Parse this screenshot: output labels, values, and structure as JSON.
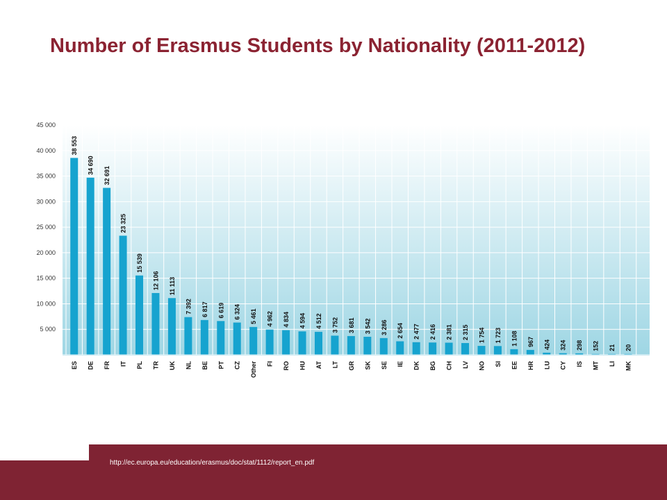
{
  "slide": {
    "title": "Number of Erasmus Students by Nationality (2011-2012)",
    "source": "http://ec.europa.eu/education/erasmus/doc/stat/1112/report_en.pdf"
  },
  "colors": {
    "title": "#8b2332",
    "footer": "#7f2333",
    "bar": "#16a3cf",
    "background_top": "#ffffff",
    "background_bottom": "#9ed6e4"
  },
  "chart_data": {
    "type": "bar",
    "categories": [
      "ES",
      "DE",
      "FR",
      "IT",
      "PL",
      "TR",
      "UK",
      "NL",
      "BE",
      "PT",
      "CZ",
      "Other",
      "FI",
      "RO",
      "HU",
      "AT",
      "LT",
      "GR",
      "SK",
      "SE",
      "IE",
      "DK",
      "BG",
      "CH",
      "LV",
      "NO",
      "SI",
      "EE",
      "HR",
      "LU",
      "CY",
      "IS",
      "MT",
      "LI",
      "MK"
    ],
    "values": [
      38553,
      34690,
      32691,
      23325,
      15539,
      12106,
      11113,
      7392,
      6817,
      6619,
      6324,
      5461,
      4962,
      4834,
      4594,
      4512,
      3752,
      3681,
      3542,
      3286,
      2654,
      2477,
      2416,
      2381,
      2315,
      1754,
      1723,
      1108,
      967,
      424,
      324,
      298,
      152,
      21,
      20
    ],
    "value_labels": [
      "38 553",
      "34 690",
      "32 691",
      "23 325",
      "15 539",
      "12 106",
      "11 113",
      "7 392",
      "6 817",
      "6 619",
      "6 324",
      "5 461",
      "4 962",
      "4 834",
      "4 594",
      "4 512",
      "3 752",
      "3 681",
      "3 542",
      "3 286",
      "2 654",
      "2 477",
      "2 416",
      "2 381",
      "2 315",
      "1 754",
      "1 723",
      "1 108",
      "967",
      "424",
      "324",
      "298",
      "152",
      "21",
      "20"
    ],
    "yticks": [
      5000,
      10000,
      15000,
      20000,
      25000,
      30000,
      35000,
      40000,
      45000
    ],
    "ytick_labels": [
      "5 000",
      "10 000",
      "15 000",
      "20 000",
      "25 000",
      "30 000",
      "35 000",
      "40 000",
      "45 000"
    ],
    "ylim": [
      0,
      45000
    ],
    "grid": true,
    "xlabel": "",
    "ylabel": ""
  }
}
